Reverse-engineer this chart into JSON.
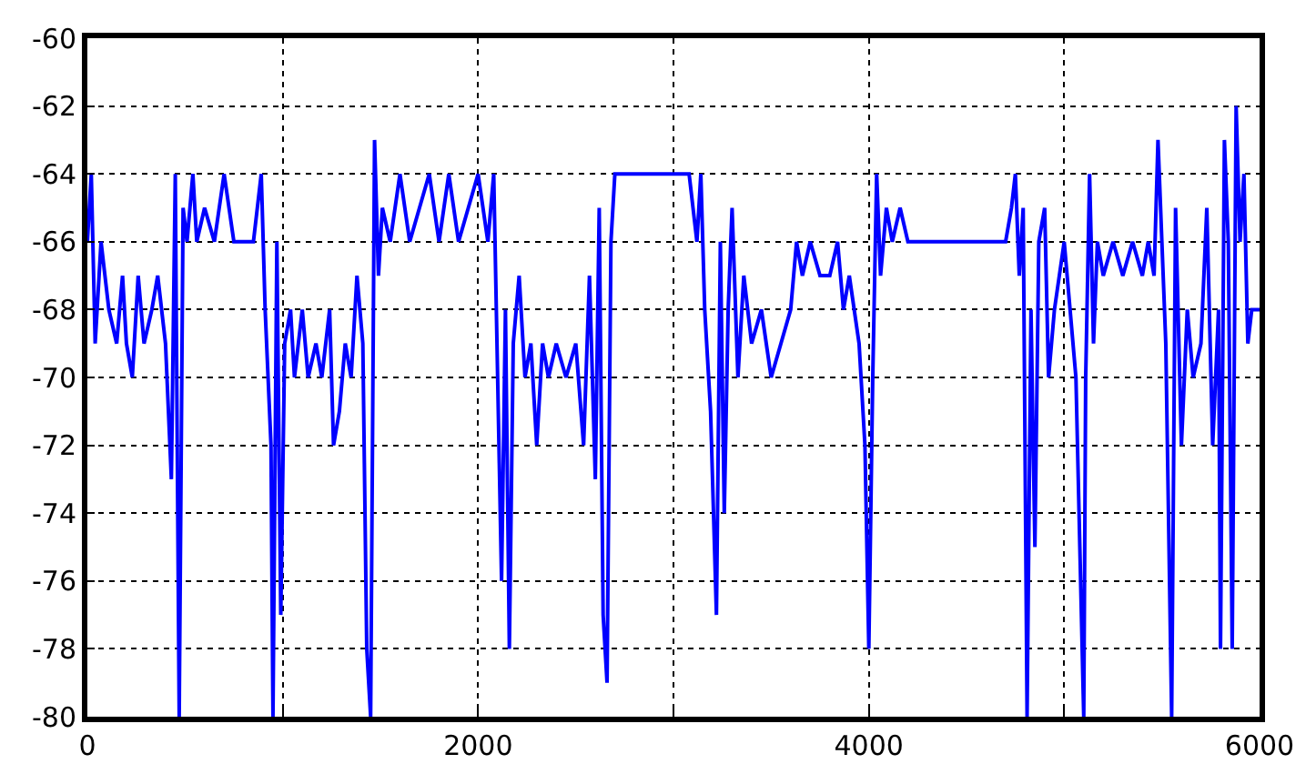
{
  "chart_data": {
    "type": "line",
    "xlim": [
      0,
      6000
    ],
    "ylim": [
      -80,
      -60
    ],
    "xticks": [
      0,
      2000,
      4000,
      6000
    ],
    "yticks": [
      -80,
      -78,
      -76,
      -74,
      -72,
      -70,
      -68,
      -66,
      -64,
      -62,
      -60
    ],
    "grid": true,
    "marker": "none",
    "line_style": "solid",
    "series": [
      {
        "color": "#0000ff",
        "x": [
          0,
          20,
          40,
          70,
          110,
          150,
          180,
          200,
          230,
          260,
          290,
          330,
          360,
          400,
          430,
          450,
          470,
          490,
          510,
          540,
          560,
          600,
          650,
          700,
          750,
          800,
          850,
          890,
          910,
          940,
          950,
          970,
          990,
          1010,
          1040,
          1060,
          1100,
          1130,
          1170,
          1200,
          1240,
          1260,
          1290,
          1320,
          1350,
          1380,
          1410,
          1430,
          1450,
          1470,
          1490,
          1510,
          1550,
          1600,
          1650,
          1700,
          1750,
          1800,
          1850,
          1900,
          1950,
          2000,
          2050,
          2080,
          2100,
          2120,
          2140,
          2160,
          2180,
          2210,
          2240,
          2270,
          2300,
          2330,
          2360,
          2400,
          2450,
          2500,
          2540,
          2570,
          2600,
          2620,
          2640,
          2660,
          2680,
          2700,
          2750,
          2800,
          2900,
          3000,
          3080,
          3100,
          3120,
          3140,
          3160,
          3190,
          3220,
          3240,
          3260,
          3280,
          3300,
          3330,
          3360,
          3400,
          3450,
          3500,
          3550,
          3600,
          3630,
          3660,
          3700,
          3750,
          3800,
          3840,
          3870,
          3900,
          3950,
          3980,
          4000,
          4020,
          4040,
          4060,
          4090,
          4120,
          4160,
          4200,
          4300,
          4500,
          4700,
          4730,
          4750,
          4770,
          4790,
          4810,
          4830,
          4850,
          4870,
          4900,
          4920,
          4950,
          5000,
          5030,
          5060,
          5080,
          5100,
          5110,
          5130,
          5150,
          5170,
          5200,
          5250,
          5300,
          5350,
          5400,
          5430,
          5460,
          5480,
          5500,
          5520,
          5550,
          5570,
          5600,
          5630,
          5660,
          5700,
          5730,
          5760,
          5790,
          5800,
          5820,
          5840,
          5860,
          5880,
          5900,
          5920,
          5940,
          5960,
          6000
        ],
        "values": [
          -66,
          -64,
          -69,
          -66,
          -68,
          -69,
          -67,
          -69,
          -70,
          -67,
          -69,
          -68,
          -67,
          -69,
          -73,
          -64,
          -80,
          -65,
          -66,
          -64,
          -66,
          -65,
          -66,
          -64,
          -66,
          -66,
          -66,
          -64,
          -68,
          -72,
          -80,
          -66,
          -77,
          -69,
          -68,
          -70,
          -68,
          -70,
          -69,
          -70,
          -68,
          -72,
          -71,
          -69,
          -70,
          -67,
          -69,
          -78,
          -80,
          -63,
          -67,
          -65,
          -66,
          -64,
          -66,
          -65,
          -64,
          -66,
          -64,
          -66,
          -65,
          -64,
          -66,
          -64,
          -70,
          -76,
          -68,
          -78,
          -69,
          -67,
          -70,
          -69,
          -72,
          -69,
          -70,
          -69,
          -70,
          -69,
          -72,
          -67,
          -73,
          -65,
          -77,
          -79,
          -66,
          -64,
          -64,
          -64,
          -64,
          -64,
          -64,
          -65,
          -66,
          -64,
          -68,
          -71,
          -77,
          -66,
          -74,
          -68,
          -65,
          -70,
          -67,
          -69,
          -68,
          -70,
          -69,
          -68,
          -66,
          -67,
          -66,
          -67,
          -67,
          -66,
          -68,
          -67,
          -69,
          -72,
          -78,
          -70,
          -64,
          -67,
          -65,
          -66,
          -65,
          -66,
          -66,
          -66,
          -66,
          -65,
          -64,
          -67,
          -65,
          -80,
          -68,
          -75,
          -66,
          -65,
          -70,
          -68,
          -66,
          -68,
          -70,
          -75,
          -80,
          -70,
          -64,
          -69,
          -66,
          -67,
          -66,
          -67,
          -66,
          -67,
          -66,
          -67,
          -63,
          -66,
          -69,
          -80,
          -65,
          -72,
          -68,
          -70,
          -69,
          -65,
          -72,
          -68,
          -78,
          -63,
          -66,
          -78,
          -62,
          -66,
          -64,
          -69,
          -68,
          -68
        ]
      }
    ]
  }
}
